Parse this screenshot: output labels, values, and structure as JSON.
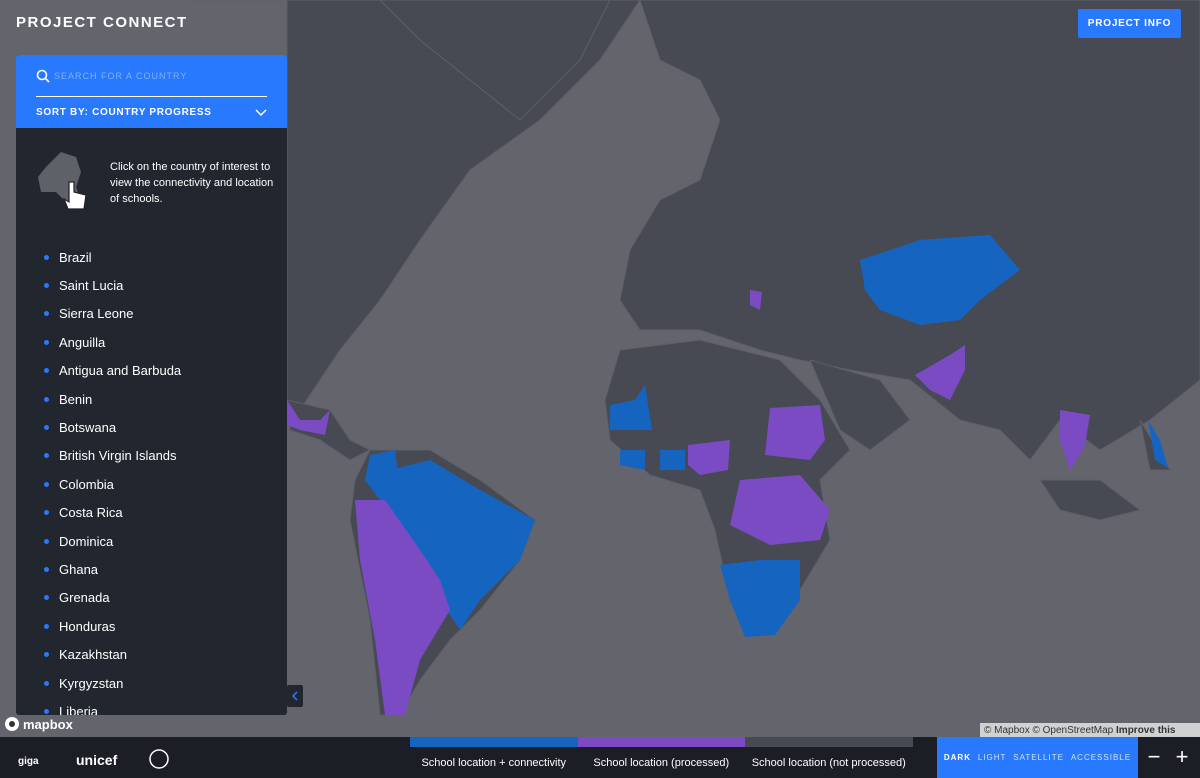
{
  "header": {
    "title": "PROJECT CONNECT",
    "info_button": "PROJECT INFO"
  },
  "sidebar": {
    "search_placeholder": "SEARCH FOR A COUNTRY",
    "sort_label": "SORT BY: COUNTRY PROGRESS",
    "hint": "Click on the country of interest to view the connectivity and location of schools.",
    "countries": [
      "Brazil",
      "Saint Lucia",
      "Sierra Leone",
      "Anguilla",
      "Antigua and Barbuda",
      "Benin",
      "Botswana",
      "British Virgin Islands",
      "Colombia",
      "Costa Rica",
      "Dominica",
      "Ghana",
      "Grenada",
      "Honduras",
      "Kazakhstan",
      "Kyrgyzstan",
      "Liberia"
    ]
  },
  "map": {
    "logo": "mapbox",
    "attribution": "© Mapbox © OpenStreetMap",
    "improve": "Improve this map"
  },
  "footer": {
    "logos": [
      "giga",
      "unicef"
    ],
    "legend": [
      "School location + connectivity",
      "School location (processed)",
      "School location (not processed)"
    ],
    "styles": [
      "DARK",
      "LIGHT",
      "SATELLITE",
      "ACCESSIBLE"
    ],
    "zoom": [
      "−",
      "+"
    ]
  }
}
